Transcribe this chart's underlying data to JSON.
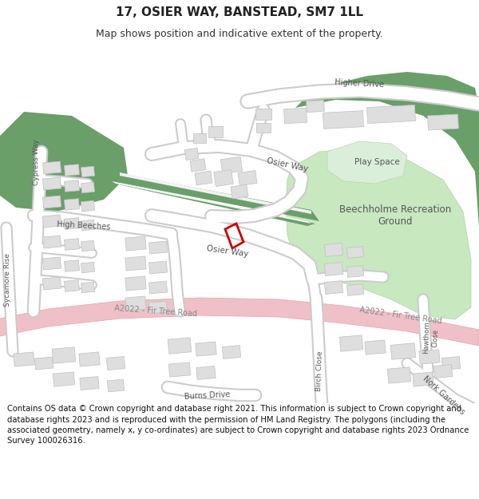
{
  "title": "17, OSIER WAY, BANSTEAD, SM7 1LL",
  "subtitle": "Map shows position and indicative extent of the property.",
  "footer": "Contains OS data © Crown copyright and database right 2021. This information is subject to Crown copyright and database rights 2023 and is reproduced with the permission of HM Land Registry. The polygons (including the associated geometry, namely x, y co-ordinates) are subject to Crown copyright and database rights 2023 Ordnance Survey 100026316.",
  "bg_color": "#ffffff",
  "map_bg": "#f2f2f2",
  "green_dark": "#6a9f6a",
  "green_light": "#c8e8c0",
  "road_a_color": "#f0c0c8",
  "road_a_border": "#e8a0a8",
  "building_color": "#dedede",
  "building_outline": "#c0c0c0",
  "property_color": "#cc0000",
  "text_color": "#333333",
  "road_white": "#ffffff",
  "road_border": "#cccccc"
}
